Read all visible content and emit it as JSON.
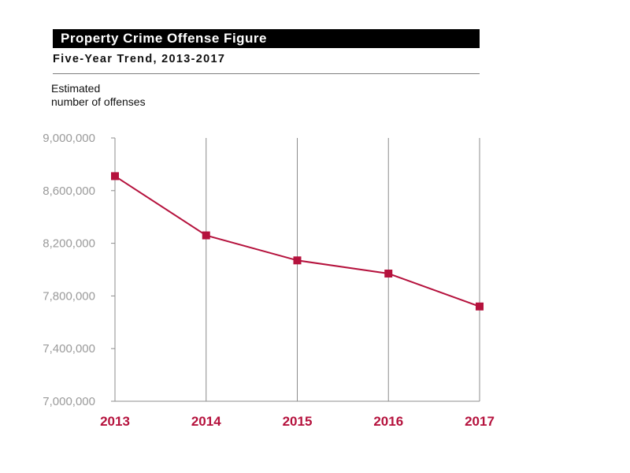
{
  "header": {
    "title": "Property Crime Offense Figure",
    "subtitle": "Five-Year Trend, 2013-2017"
  },
  "chart_data": {
    "type": "line",
    "title": "Property Crime Offense Figure",
    "subtitle": "Five-Year Trend, 2013-2017",
    "ylabel_lines": [
      "Estimated",
      "number of offenses"
    ],
    "xlabel": "",
    "categories": [
      "2013",
      "2014",
      "2015",
      "2016",
      "2017"
    ],
    "series": [
      {
        "values": [
          8710000,
          8260000,
          8070000,
          7970000,
          7720000
        ]
      }
    ],
    "ylim": [
      7000000,
      9000000
    ],
    "yticks": [
      9000000,
      8600000,
      8200000,
      7800000,
      7400000,
      7000000
    ],
    "ytick_labels": [
      "9,000,000",
      "8,600,000",
      "8,200,000",
      "7,800,000",
      "7,400,000",
      "7,000,000"
    ],
    "grid": "vertical",
    "legend": "none",
    "colors": {
      "line": "#b5123d",
      "marker": "#b5123d",
      "xtick_label": "#b5123d",
      "ytick_label": "#9a9a9a",
      "axis": "#8c8c8c",
      "grid": "#8c8c8c",
      "title_bg": "#000000",
      "title_text": "#ffffff"
    }
  }
}
